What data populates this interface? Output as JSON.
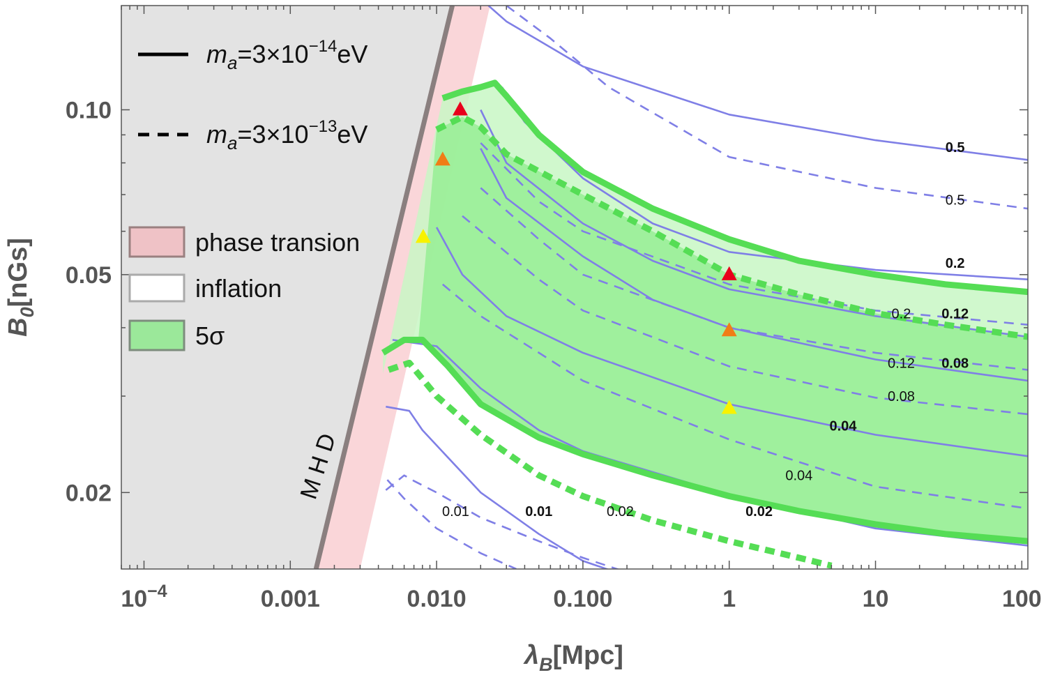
{
  "chart_data": {
    "type": "contour",
    "xlabel": "λ",
    "xlabel_sub": "B",
    "xlabel_unit": "[Mpc]",
    "ylabel": "B",
    "ylabel_sub": "0",
    "ylabel_unit": "[nGs]",
    "x_scale": "log",
    "y_scale": "log",
    "xlim": [
      7e-05,
      110
    ],
    "ylim": [
      0.0145,
      0.155
    ],
    "x_ticks": [
      {
        "value": 0.0001,
        "base": "10",
        "exp": "−4"
      },
      {
        "value": 0.001,
        "label": "0.001"
      },
      {
        "value": 0.01,
        "label": "0.010"
      },
      {
        "value": 0.1,
        "label": "0.100"
      },
      {
        "value": 1,
        "label": "1"
      },
      {
        "value": 10,
        "label": "10"
      },
      {
        "value": 100,
        "label": "100"
      }
    ],
    "y_ticks": [
      {
        "value": 0.1,
        "label": "0.10"
      },
      {
        "value": 0.05,
        "label": "0.05"
      },
      {
        "value": 0.02,
        "label": "0.02"
      }
    ],
    "mhd_label": "M H D",
    "regions": {
      "mhd_excluded": {
        "color": "#e3e3e3",
        "edge_color": "#8a7f7f"
      },
      "phase_transition": {
        "color": "#f8c8cc"
      },
      "five_sigma_outer": {
        "color": "#c8f7c4"
      },
      "five_sigma_inner": {
        "color": "#97ee94"
      }
    },
    "contours": [
      {
        "name": "solid 0.5",
        "style": "solid",
        "label": "0.5",
        "points": [
          [
            0.0226,
            0.155
          ],
          [
            0.03,
            0.145
          ],
          [
            0.1,
            0.12
          ],
          [
            1,
            0.098
          ],
          [
            10,
            0.088
          ],
          [
            110,
            0.081
          ]
        ]
      },
      {
        "name": "solid 0.2",
        "style": "solid",
        "label": "0.2",
        "points": [
          [
            0.028,
            0.11
          ],
          [
            0.04,
            0.095
          ],
          [
            0.1,
            0.075
          ],
          [
            0.3,
            0.062
          ],
          [
            1,
            0.055
          ],
          [
            10,
            0.051
          ],
          [
            110,
            0.049
          ]
        ]
      },
      {
        "name": "solid 0.12",
        "style": "solid",
        "label": "0.12",
        "points": [
          [
            0.02,
            0.1
          ],
          [
            0.03,
            0.08
          ],
          [
            0.1,
            0.062
          ],
          [
            0.3,
            0.053
          ],
          [
            1,
            0.047
          ],
          [
            10,
            0.042
          ],
          [
            110,
            0.0385
          ]
        ]
      },
      {
        "name": "solid 0.08",
        "style": "solid",
        "label": "0.08",
        "points": [
          [
            0.02,
            0.085
          ],
          [
            0.03,
            0.069
          ],
          [
            0.1,
            0.054
          ],
          [
            0.3,
            0.045
          ],
          [
            1,
            0.04
          ],
          [
            10,
            0.035
          ],
          [
            110,
            0.032
          ]
        ]
      },
      {
        "name": "solid 0.04",
        "style": "solid",
        "label": "0.04",
        "points": [
          [
            0.01,
            0.061
          ],
          [
            0.015,
            0.05
          ],
          [
            0.03,
            0.042
          ],
          [
            0.1,
            0.036
          ],
          [
            1,
            0.029
          ],
          [
            10,
            0.0255
          ],
          [
            110,
            0.0233
          ]
        ]
      },
      {
        "name": "solid 0.02",
        "style": "solid",
        "label": "0.02",
        "points": [
          [
            0.005,
            0.038
          ],
          [
            0.01,
            0.037
          ],
          [
            0.02,
            0.031
          ],
          [
            0.05,
            0.026
          ],
          [
            0.1,
            0.0238
          ],
          [
            1,
            0.0198
          ],
          [
            10,
            0.0172
          ],
          [
            110,
            0.016
          ]
        ]
      },
      {
        "name": "solid 0.01",
        "style": "solid",
        "label": "0.01",
        "points": [
          [
            0.0045,
            0.0287
          ],
          [
            0.0065,
            0.0282
          ],
          [
            0.008,
            0.026
          ],
          [
            0.02,
            0.02
          ],
          [
            0.05,
            0.0168
          ],
          [
            0.1,
            0.015
          ],
          [
            0.25,
            0.0138
          ]
        ]
      },
      {
        "name": "dashed 0.5",
        "style": "dashed",
        "label": "0.5",
        "points": [
          [
            0.03,
            0.155
          ],
          [
            0.06,
            0.135
          ],
          [
            0.15,
            0.11
          ],
          [
            1,
            0.082
          ],
          [
            10,
            0.072
          ],
          [
            110,
            0.066
          ]
        ]
      },
      {
        "name": "dashed 0.2",
        "style": "dashed",
        "label": "0.2",
        "points": [
          [
            0.02,
            0.087
          ],
          [
            0.05,
            0.068
          ],
          [
            0.1,
            0.06
          ],
          [
            1,
            0.048
          ],
          [
            10,
            0.043
          ],
          [
            110,
            0.0405
          ]
        ]
      },
      {
        "name": "dashed 0.12",
        "style": "dashed",
        "label": "0.12",
        "points": [
          [
            0.02,
            0.072
          ],
          [
            0.05,
            0.058
          ],
          [
            0.1,
            0.05
          ],
          [
            1,
            0.04
          ],
          [
            10,
            0.036
          ],
          [
            110,
            0.0335
          ]
        ]
      },
      {
        "name": "dashed 0.08",
        "style": "dashed",
        "label": "0.08",
        "points": [
          [
            0.015,
            0.064
          ],
          [
            0.05,
            0.049
          ],
          [
            0.1,
            0.043
          ],
          [
            1,
            0.034
          ],
          [
            10,
            0.0298
          ],
          [
            110,
            0.0278
          ]
        ]
      },
      {
        "name": "dashed 0.04",
        "style": "dashed",
        "label": "0.04",
        "points": [
          [
            0.011,
            0.048
          ],
          [
            0.02,
            0.042
          ],
          [
            0.05,
            0.036
          ],
          [
            0.1,
            0.032
          ],
          [
            1,
            0.025
          ],
          [
            10,
            0.0205
          ],
          [
            110,
            0.0187
          ]
        ]
      },
      {
        "name": "dashed 0.02",
        "style": "dashed",
        "label": "0.02",
        "points": [
          [
            0.0045,
            0.0202
          ],
          [
            0.006,
            0.0215
          ],
          [
            0.007,
            0.021
          ],
          [
            0.01,
            0.02
          ],
          [
            0.02,
            0.018
          ],
          [
            0.05,
            0.0163
          ],
          [
            0.1,
            0.0152
          ],
          [
            0.2,
            0.0143
          ]
        ]
      },
      {
        "name": "dashed 0.01",
        "style": "dashed",
        "label": "0.01",
        "points": [
          [
            0.0046,
            0.0211
          ],
          [
            0.006,
            0.0195
          ],
          [
            0.01,
            0.0172
          ],
          [
            0.02,
            0.0155
          ],
          [
            0.035,
            0.0145
          ]
        ]
      }
    ],
    "five_sigma_bands": [
      {
        "name": "solid upper",
        "style": "solid",
        "points": [
          [
            0.011,
            0.105
          ],
          [
            0.015,
            0.108
          ],
          [
            0.02,
            0.11
          ],
          [
            0.025,
            0.112
          ],
          [
            0.03,
            0.106
          ],
          [
            0.05,
            0.09
          ],
          [
            0.1,
            0.077
          ],
          [
            0.3,
            0.066
          ],
          [
            1,
            0.058
          ],
          [
            3,
            0.053
          ],
          [
            10,
            0.05
          ],
          [
            30,
            0.048
          ],
          [
            110,
            0.0465
          ]
        ]
      },
      {
        "name": "solid lower",
        "style": "solid",
        "points": [
          [
            0.0043,
            0.036
          ],
          [
            0.006,
            0.038
          ],
          [
            0.008,
            0.038
          ],
          [
            0.012,
            0.034
          ],
          [
            0.02,
            0.029
          ],
          [
            0.05,
            0.0252
          ],
          [
            0.1,
            0.0235
          ],
          [
            0.3,
            0.0215
          ],
          [
            1,
            0.0197
          ],
          [
            3,
            0.0185
          ],
          [
            10,
            0.0175
          ],
          [
            30,
            0.0168
          ],
          [
            110,
            0.0163
          ]
        ]
      },
      {
        "name": "dashed upper",
        "style": "dashed",
        "points": [
          [
            0.01,
            0.092
          ],
          [
            0.015,
            0.097
          ],
          [
            0.02,
            0.093
          ],
          [
            0.03,
            0.083
          ],
          [
            0.1,
            0.07
          ],
          [
            0.3,
            0.06
          ],
          [
            1,
            0.05
          ],
          [
            3,
            0.046
          ],
          [
            10,
            0.0425
          ],
          [
            30,
            0.0405
          ],
          [
            110,
            0.0385
          ]
        ]
      },
      {
        "name": "dashed lower",
        "style": "dashed",
        "points": [
          [
            0.0047,
            0.0335
          ],
          [
            0.0065,
            0.0345
          ],
          [
            0.01,
            0.03
          ],
          [
            0.02,
            0.0255
          ],
          [
            0.05,
            0.0215
          ],
          [
            0.1,
            0.0197
          ],
          [
            0.3,
            0.0178
          ],
          [
            1,
            0.0163
          ],
          [
            3,
            0.0152
          ],
          [
            5,
            0.0147
          ]
        ]
      }
    ],
    "markers": [
      {
        "name": "red (solid)",
        "x": 0.0145,
        "y": 0.1,
        "color": "#e8001c"
      },
      {
        "name": "orange (solid)",
        "x": 0.011,
        "y": 0.081,
        "color": "#f07d16"
      },
      {
        "name": "yellow (solid)",
        "x": 0.0081,
        "y": 0.0585,
        "color": "#f8f200"
      },
      {
        "name": "red (dashed)",
        "x": 1,
        "y": 0.05,
        "color": "#e8001c"
      },
      {
        "name": "orange (dashed)",
        "x": 1,
        "y": 0.0395,
        "color": "#f07d16"
      },
      {
        "name": "yellow (dashed)",
        "x": 1,
        "y": 0.0285,
        "color": "#f8f200"
      }
    ],
    "contour_labels": [
      {
        "text": "0.5",
        "x": 35,
        "y": 0.0855,
        "bold": true
      },
      {
        "text": "0.5",
        "x": 35,
        "y": 0.0685,
        "bold": false
      },
      {
        "text": "0.2",
        "x": 35,
        "y": 0.0525,
        "bold": true
      },
      {
        "text": "0.2",
        "x": 15,
        "y": 0.0425,
        "bold": false
      },
      {
        "text": "0.12",
        "x": 35,
        "y": 0.0425,
        "bold": true
      },
      {
        "text": "0.12",
        "x": 15,
        "y": 0.0345,
        "bold": false
      },
      {
        "text": "0.08",
        "x": 35,
        "y": 0.0345,
        "bold": true
      },
      {
        "text": "0.08",
        "x": 15,
        "y": 0.03,
        "bold": false
      },
      {
        "text": "0.04",
        "x": 6,
        "y": 0.0265,
        "bold": true
      },
      {
        "text": "0.04",
        "x": 3,
        "y": 0.0215,
        "bold": false
      },
      {
        "text": "0.01",
        "x": 0.0135,
        "y": 0.0185,
        "bold": false
      },
      {
        "text": "0.01",
        "x": 0.05,
        "y": 0.0185,
        "bold": true
      },
      {
        "text": "0.02",
        "x": 0.18,
        "y": 0.0185,
        "bold": false
      },
      {
        "text": "0.02",
        "x": 1.6,
        "y": 0.0185,
        "bold": true
      }
    ],
    "legend": {
      "placement": "top-left",
      "line_items": [
        {
          "style": "solid",
          "m": "m",
          "sub": "a",
          "eq": "=3×10",
          "exp": "−14",
          "unit": "eV"
        },
        {
          "style": "dashed",
          "m": "m",
          "sub": "a",
          "eq": "=3×10",
          "exp": "−13",
          "unit": "eV"
        }
      ],
      "swatch_items": [
        {
          "label": "phase transion",
          "color": "#efc2c6",
          "edge": "#9a8080"
        },
        {
          "label": "inflation",
          "color": "#ffffff",
          "edge": "#aaaaaa"
        },
        {
          "label": "5σ",
          "color": "#9be89a",
          "edge": "#7d8d7d"
        }
      ]
    }
  }
}
